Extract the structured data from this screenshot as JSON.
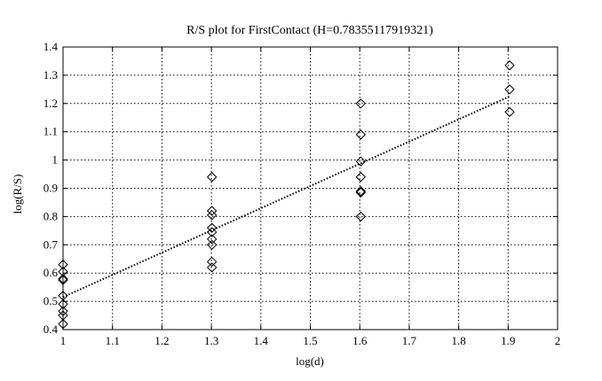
{
  "chart_data": {
    "type": "scatter",
    "title": "R/S plot for FirstContact (H=0.78355117919321)",
    "xlabel": "log(d)",
    "ylabel": "log(R/S)",
    "xlim": [
      1,
      2
    ],
    "ylim": [
      0.4,
      1.4
    ],
    "xticks": [
      1,
      1.1,
      1.2,
      1.3,
      1.4,
      1.5,
      1.6,
      1.7,
      1.8,
      1.9,
      2
    ],
    "yticks": [
      0.4,
      0.5,
      0.6,
      0.7,
      0.8,
      0.9,
      1.0,
      1.1,
      1.2,
      1.3,
      1.4
    ],
    "xtick_labels": [
      "1",
      "1.1",
      "1.2",
      "1.3",
      "1.4",
      "1.5",
      "1.6",
      "1.7",
      "1.8",
      "1.9",
      "2"
    ],
    "ytick_labels": [
      "0.4",
      "0.5",
      "0.6",
      "0.7",
      "0.8",
      "0.9",
      "1",
      "1.1",
      "1.2",
      "1.3",
      "1.4"
    ],
    "grid": true,
    "marker": "diamond",
    "points": [
      {
        "x": 1.0,
        "y": 0.63
      },
      {
        "x": 1.0,
        "y": 0.605
      },
      {
        "x": 1.0,
        "y": 0.58
      },
      {
        "x": 1.0,
        "y": 0.575
      },
      {
        "x": 1.0,
        "y": 0.52
      },
      {
        "x": 1.0,
        "y": 0.49
      },
      {
        "x": 1.0,
        "y": 0.465
      },
      {
        "x": 1.0,
        "y": 0.45
      },
      {
        "x": 1.0,
        "y": 0.42
      },
      {
        "x": 1.301,
        "y": 0.94
      },
      {
        "x": 1.301,
        "y": 0.82
      },
      {
        "x": 1.301,
        "y": 0.805
      },
      {
        "x": 1.301,
        "y": 0.76
      },
      {
        "x": 1.301,
        "y": 0.745
      },
      {
        "x": 1.301,
        "y": 0.72
      },
      {
        "x": 1.301,
        "y": 0.7
      },
      {
        "x": 1.301,
        "y": 0.64
      },
      {
        "x": 1.301,
        "y": 0.62
      },
      {
        "x": 1.602,
        "y": 1.2
      },
      {
        "x": 1.602,
        "y": 1.09
      },
      {
        "x": 1.602,
        "y": 0.995
      },
      {
        "x": 1.602,
        "y": 0.94
      },
      {
        "x": 1.602,
        "y": 0.89
      },
      {
        "x": 1.602,
        "y": 0.885
      },
      {
        "x": 1.602,
        "y": 0.8
      },
      {
        "x": 1.903,
        "y": 1.335
      },
      {
        "x": 1.903,
        "y": 1.25
      },
      {
        "x": 1.903,
        "y": 1.17
      }
    ],
    "fit_line": {
      "x": [
        1.0,
        1.903
      ],
      "y": [
        0.515,
        1.225
      ],
      "style": "dotted"
    }
  }
}
